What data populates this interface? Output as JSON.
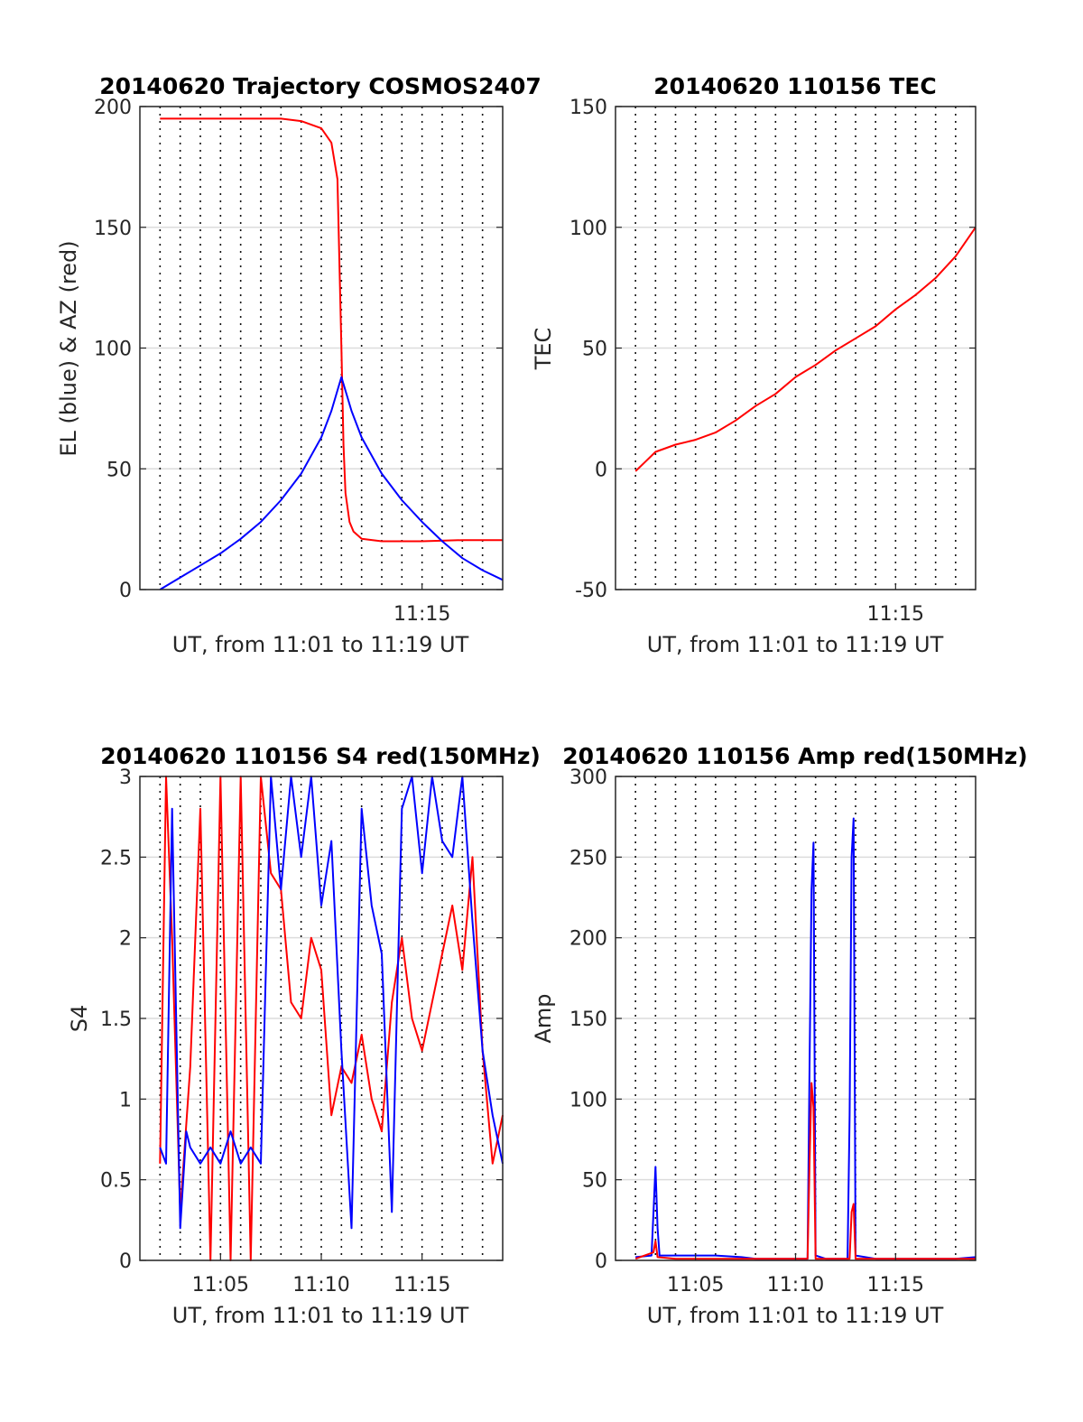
{
  "figure": {
    "colors": {
      "el": "#0000ff",
      "az": "#ff0000",
      "tec": "#ff0000",
      "s4_red": "#ff0000",
      "s4_blue": "#0000ff",
      "amp_red": "#ff0000",
      "amp_blue": "#0000ff"
    }
  },
  "chart_data": [
    {
      "id": "traj",
      "type": "line",
      "title": "20140620 Trajectory COSMOS2407",
      "xlabel": "UT, from 11:01 to 11:19 UT",
      "ylabel": "EL (blue) & AZ (red)",
      "xlim": [
        "11:01",
        "11:19"
      ],
      "x_ticks": [
        "11:15"
      ],
      "ylim": [
        0,
        200
      ],
      "y_ticks": [
        0,
        50,
        100,
        150,
        200
      ],
      "grid": true,
      "vertical_dotted_grid": true,
      "series": [
        {
          "color_key": "az",
          "x": [
            "11:02",
            "11:04",
            "11:06",
            "11:08",
            "11:09",
            "11:10",
            "11:10.5",
            "11:10.8",
            "11:11",
            "11:11.1",
            "11:11.2",
            "11:11.4",
            "11:11.6",
            "11:12",
            "11:13",
            "11:15",
            "11:17",
            "11:19"
          ],
          "values": [
            195,
            195,
            195,
            195,
            194,
            191,
            185,
            170,
            100,
            60,
            40,
            28,
            24,
            21,
            20,
            20,
            20.5,
            20.5
          ]
        },
        {
          "color_key": "el",
          "x": [
            "11:02",
            "11:03",
            "11:04",
            "11:05",
            "11:06",
            "11:07",
            "11:08",
            "11:09",
            "11:10",
            "11:10.5",
            "11:11",
            "11:11.5",
            "11:12",
            "11:13",
            "11:14",
            "11:15",
            "11:16",
            "11:17",
            "11:18",
            "11:19"
          ],
          "values": [
            0,
            5,
            10,
            15,
            21,
            28,
            37,
            48,
            63,
            74,
            88,
            74,
            63,
            48,
            37,
            28,
            20,
            13,
            8,
            4
          ]
        }
      ]
    },
    {
      "id": "tec",
      "type": "line",
      "title": "20140620 110156 TEC",
      "xlabel": "UT, from 11:01 to 11:19 UT",
      "ylabel": "TEC",
      "xlim": [
        "11:01",
        "11:19"
      ],
      "x_ticks": [
        "11:15"
      ],
      "ylim": [
        -50,
        150
      ],
      "y_ticks": [
        -50,
        0,
        50,
        100,
        150
      ],
      "grid": true,
      "vertical_dotted_grid": true,
      "series": [
        {
          "color_key": "tec",
          "x": [
            "11:02",
            "11:02.5",
            "11:03",
            "11:04",
            "11:05",
            "11:06",
            "11:07",
            "11:08",
            "11:09",
            "11:10",
            "11:11",
            "11:12",
            "11:13",
            "11:14",
            "11:15",
            "11:16",
            "11:17",
            "11:18",
            "11:19"
          ],
          "values": [
            -1,
            3,
            7,
            10,
            12,
            15,
            20,
            26,
            31,
            38,
            43,
            49,
            54,
            59,
            66,
            72,
            79,
            88,
            100
          ]
        }
      ]
    },
    {
      "id": "s4",
      "type": "line",
      "title": "20140620 110156 S4 red(150MHz)",
      "xlabel": "UT, from 11:01 to 11:19 UT",
      "ylabel": "S4",
      "xlim": [
        "11:01",
        "11:19"
      ],
      "x_ticks": [
        "11:05",
        "11:10",
        "11:15"
      ],
      "ylim": [
        0,
        3
      ],
      "y_ticks": [
        0,
        0.5,
        1,
        1.5,
        2,
        2.5,
        3
      ],
      "grid": true,
      "vertical_dotted_grid": true,
      "series": [
        {
          "color_key": "s4_red",
          "x": [
            "11:02",
            "11:02.3",
            "11:02.6",
            "11:03",
            "11:03.5",
            "11:04",
            "11:04.5",
            "11:05",
            "11:05.5",
            "11:06",
            "11:06.5",
            "11:07",
            "11:07.5",
            "11:08",
            "11:08.5",
            "11:09",
            "11:09.5",
            "11:10",
            "11:10.5",
            "11:11",
            "11:11.5",
            "11:12",
            "11:12.5",
            "11:13",
            "11:13.5",
            "11:14",
            "11:14.5",
            "11:15",
            "11:15.5",
            "11:16",
            "11:16.5",
            "11:17",
            "11:17.5",
            "11:18",
            "11:18.5",
            "11:19"
          ],
          "values": [
            0.6,
            3,
            2,
            0.3,
            1.2,
            2.8,
            0,
            3,
            0,
            3,
            0,
            3,
            2.4,
            2.3,
            1.6,
            1.5,
            2.0,
            1.8,
            0.9,
            1.2,
            1.1,
            1.4,
            1.0,
            0.8,
            1.6,
            2.0,
            1.5,
            1.3,
            1.6,
            1.9,
            2.2,
            1.8,
            2.5,
            1.3,
            0.6,
            0.9
          ]
        },
        {
          "color_key": "s4_blue",
          "x": [
            "11:02",
            "11:02.3",
            "11:02.6",
            "11:03",
            "11:03.3",
            "11:03.5",
            "11:04",
            "11:04.5",
            "11:05",
            "11:05.5",
            "11:06",
            "11:06.5",
            "11:07",
            "11:07.5",
            "11:08",
            "11:08.5",
            "11:09",
            "11:09.5",
            "11:10",
            "11:10.5",
            "11:11",
            "11:11.5",
            "11:12",
            "11:12.5",
            "11:13",
            "11:13.5",
            "11:14",
            "11:14.5",
            "11:15",
            "11:15.5",
            "11:16",
            "11:16.5",
            "11:17",
            "11:17.5",
            "11:18",
            "11:18.5",
            "11:19"
          ],
          "values": [
            0.7,
            0.6,
            2.8,
            0.2,
            0.8,
            0.7,
            0.6,
            0.7,
            0.6,
            0.8,
            0.6,
            0.7,
            0.6,
            3,
            2.3,
            3,
            2.5,
            3,
            2.2,
            2.6,
            1.3,
            0.2,
            2.8,
            2.2,
            1.9,
            0.3,
            2.8,
            3,
            2.4,
            3,
            2.6,
            2.5,
            3,
            2.1,
            1.3,
            0.9,
            0.6
          ]
        }
      ]
    },
    {
      "id": "amp",
      "type": "line",
      "title": "20140620 110156 Amp red(150MHz)",
      "xlabel": "UT, from 11:01 to 11:19 UT",
      "ylabel": "Amp",
      "xlim": [
        "11:01",
        "11:19"
      ],
      "x_ticks": [
        "11:05",
        "11:10",
        "11:15"
      ],
      "ylim": [
        0,
        300
      ],
      "y_ticks": [
        0,
        50,
        100,
        150,
        200,
        250,
        300
      ],
      "grid": true,
      "vertical_dotted_grid": true,
      "series": [
        {
          "color_key": "amp_blue",
          "x": [
            "11:02",
            "11:02.8",
            "11:02.9",
            "11:03",
            "11:03.1",
            "11:03.2",
            "11:04",
            "11:06",
            "11:07.3",
            "11:08",
            "11:10",
            "11:10.6",
            "11:10.7",
            "11:10.8",
            "11:10.9",
            "11:11",
            "11:11.5",
            "11:12",
            "11:12.6",
            "11:12.7",
            "11:12.8",
            "11:12.9",
            "11:13",
            "11:14",
            "11:16",
            "11:18",
            "11:19"
          ],
          "values": [
            2,
            3,
            30,
            58,
            20,
            3,
            3,
            3,
            2,
            1,
            1,
            1,
            120,
            230,
            259,
            3,
            1,
            1,
            1,
            90,
            250,
            274,
            3,
            1,
            1,
            1,
            2
          ]
        },
        {
          "color_key": "amp_red",
          "x": [
            "11:02",
            "11:02.9",
            "11:03",
            "11:03.1",
            "11:04",
            "11:10.6",
            "11:10.7",
            "11:10.8",
            "11:10.9",
            "11:11",
            "11:12.7",
            "11:12.8",
            "11:12.9",
            "11:13",
            "11:19"
          ],
          "values": [
            1,
            5,
            12,
            2,
            1,
            1,
            60,
            110,
            95,
            1,
            1,
            30,
            35,
            1,
            1
          ]
        }
      ]
    }
  ]
}
